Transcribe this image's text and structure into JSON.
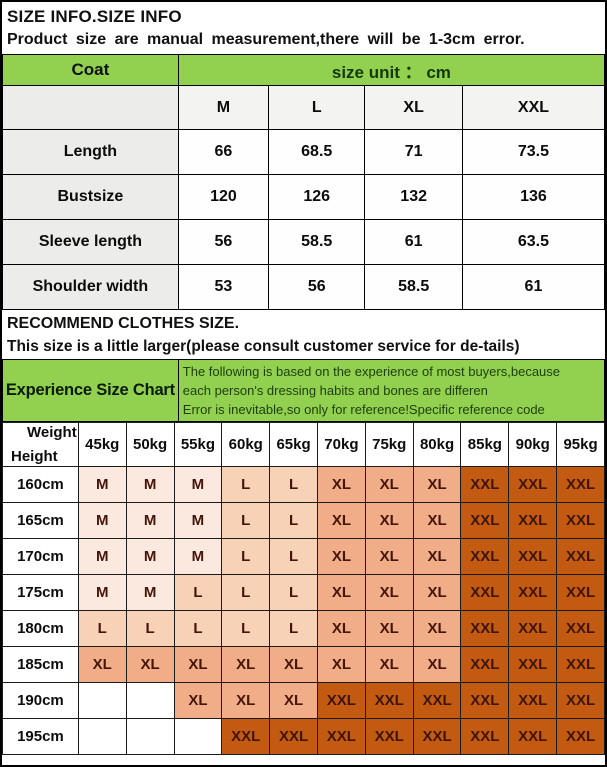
{
  "page": {
    "title": "SIZE INFO.SIZE INFO",
    "subtitle": "Product size are manual measurement,there will be 1-3cm error."
  },
  "size_table": {
    "product_label": "Coat",
    "unit_label": "size unit ： cm",
    "columns": [
      "M",
      "L",
      "XL",
      "XXL"
    ],
    "rows": [
      {
        "label": "Length",
        "values": [
          "66",
          "68.5",
          "71",
          "73.5"
        ]
      },
      {
        "label": "Bustsize",
        "values": [
          "120",
          "126",
          "132",
          "136"
        ]
      },
      {
        "label": "Sleeve length",
        "values": [
          "56",
          "58.5",
          "61",
          "63.5"
        ]
      },
      {
        "label": "Shoulder width",
        "values": [
          "53",
          "56",
          "58.5",
          "61"
        ]
      }
    ]
  },
  "recommend": {
    "heading": "RECOMMEND CLOTHES  SIZE.",
    "note": "This size is a little larger(please consult customer service for de-tails)"
  },
  "experience": {
    "title": "Experience Size Chart",
    "lines": [
      "The following is based on the experience of most buyers,because",
      "each person's dressing habits and bones are differen",
      "Error is inevitable,so only for reference!Specific reference code"
    ]
  },
  "matrix": {
    "corner": {
      "top": "Weight",
      "bottom": "Height"
    },
    "weights": [
      "45kg",
      "50kg",
      "55kg",
      "60kg",
      "65kg",
      "70kg",
      "75kg",
      "80kg",
      "85kg",
      "90kg",
      "95kg"
    ],
    "heights": [
      "160cm",
      "165cm",
      "170cm",
      "175cm",
      "180cm",
      "185cm",
      "190cm",
      "195cm"
    ],
    "cells": [
      [
        "M",
        "M",
        "M",
        "L",
        "L",
        "XL",
        "XL",
        "XL",
        "XXL",
        "XXL",
        "XXL"
      ],
      [
        "M",
        "M",
        "M",
        "L",
        "L",
        "XL",
        "XL",
        "XL",
        "XXL",
        "XXL",
        "XXL"
      ],
      [
        "M",
        "M",
        "M",
        "L",
        "L",
        "XL",
        "XL",
        "XL",
        "XXL",
        "XXL",
        "XXL"
      ],
      [
        "M",
        "M",
        "L",
        "L",
        "L",
        "XL",
        "XL",
        "XL",
        "XXL",
        "XXL",
        "XXL"
      ],
      [
        "L",
        "L",
        "L",
        "L",
        "L",
        "XL",
        "XL",
        "XL",
        "XXL",
        "XXL",
        "XXL"
      ],
      [
        "XL",
        "XL",
        "XL",
        "XL",
        "XL",
        "XL",
        "XL",
        "XL",
        "XXL",
        "XXL",
        "XXL"
      ],
      [
        "",
        "",
        "XL",
        "XL",
        "XL",
        "XXL",
        "XXL",
        "XXL",
        "XXL",
        "XXL",
        "XXL"
      ],
      [
        "",
        "",
        "",
        "XXL",
        "XXL",
        "XXL",
        "XXL",
        "XXL",
        "XXL",
        "XXL",
        "XXL"
      ]
    ]
  },
  "colors": {
    "green_header": "#92d050",
    "size_m": "#fbe9e0",
    "size_l": "#f7d2b7",
    "size_xl": "#f0ad87",
    "size_xxl": "#c25a11",
    "matrix_text": "#45150a"
  }
}
